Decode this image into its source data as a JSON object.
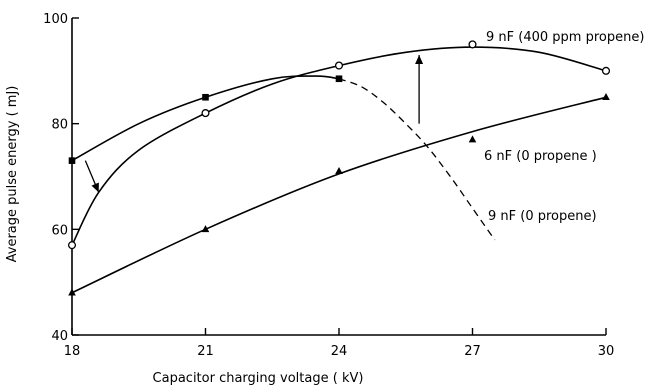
{
  "chart_data": {
    "type": "line",
    "xlabel": "Capacitor charging voltage ( kV)",
    "ylabel": "Average pulse energy ( mJ)",
    "xlim": [
      18,
      30
    ],
    "ylim": [
      40,
      100
    ],
    "x_ticks": [
      18,
      21,
      24,
      27,
      30
    ],
    "y_ticks": [
      40,
      60,
      80,
      100
    ],
    "grid": false,
    "series": [
      {
        "name": "9 nF (400 ppm propene)",
        "marker": "circle",
        "points": [
          [
            18,
            57
          ],
          [
            21,
            82
          ],
          [
            24,
            91
          ],
          [
            27,
            95
          ],
          [
            30,
            90
          ]
        ],
        "curve": [
          [
            18,
            57
          ],
          [
            18.6,
            67
          ],
          [
            19.5,
            75
          ],
          [
            21,
            82
          ],
          [
            22.5,
            87.5
          ],
          [
            24,
            91
          ],
          [
            25.5,
            93.5
          ],
          [
            27,
            94.5
          ],
          [
            28.5,
            93.5
          ],
          [
            30,
            90
          ]
        ],
        "dashed_from": null
      },
      {
        "name": "6 nF (0 propene )",
        "marker": "triangle",
        "points": [
          [
            18,
            48
          ],
          [
            21,
            60
          ],
          [
            24,
            71
          ],
          [
            27,
            77
          ],
          [
            30,
            85
          ]
        ],
        "curve": [
          [
            18,
            48
          ],
          [
            21,
            60
          ],
          [
            24,
            70.5
          ],
          [
            27,
            78.5
          ],
          [
            30,
            85
          ]
        ],
        "dashed_from": null
      },
      {
        "name": "9 nF (0 propene)",
        "marker": "square",
        "points": [
          [
            18,
            73
          ],
          [
            21,
            85
          ],
          [
            24,
            88.5
          ]
        ],
        "curve": [
          [
            18,
            73
          ],
          [
            19.5,
            80
          ],
          [
            21,
            85
          ],
          [
            22.5,
            88.5
          ],
          [
            23.5,
            89
          ],
          [
            24,
            88.5
          ],
          [
            24.5,
            87
          ],
          [
            25,
            84
          ],
          [
            25.5,
            80
          ],
          [
            26,
            75.5
          ],
          [
            26.5,
            70
          ],
          [
            27,
            64
          ],
          [
            27.5,
            58
          ]
        ],
        "dashed_from": 24.3
      }
    ],
    "annotations": [
      {
        "type": "arrow",
        "from": [
          18.3,
          73
        ],
        "to": [
          18.6,
          67
        ]
      },
      {
        "type": "arrow",
        "from": [
          25.8,
          80
        ],
        "to": [
          25.8,
          93
        ]
      }
    ]
  }
}
